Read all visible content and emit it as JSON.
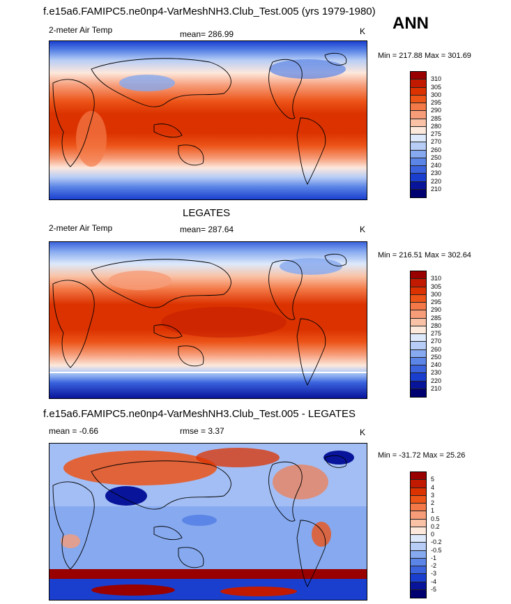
{
  "header": {
    "title": "f.e15a6.FAMIPC5.ne0np4-VarMeshNH3.Club_Test.005 (yrs 1979-1980)",
    "season": "ANN"
  },
  "panels": [
    {
      "id": "model",
      "variable": "2-meter Air Temp",
      "stat": "mean= 286.99",
      "units": "K",
      "minmax": "Min = 217.88 Max = 301.69"
    },
    {
      "id": "obs",
      "title": "LEGATES",
      "variable": "2-meter Air Temp",
      "stat": "mean= 287.64",
      "units": "K",
      "minmax": "Min = 216.51 Max = 302.64"
    },
    {
      "id": "diff",
      "title": "f.e15a6.FAMIPC5.ne0np4-VarMeshNH3.Club_Test.005 - LEGATES",
      "stat_mean": "mean =  -0.66",
      "stat_rmse": "rmse =   3.37",
      "units": "K",
      "minmax": "Min = -31.72 Max =  25.26"
    }
  ],
  "colorbar_abs": {
    "levels": [
      "310",
      "305",
      "300",
      "295",
      "290",
      "285",
      "280",
      "275",
      "270",
      "260",
      "250",
      "240",
      "230",
      "220",
      "210"
    ],
    "colors": [
      "#990000",
      "#c21a00",
      "#db3200",
      "#ec5418",
      "#f37a48",
      "#f69c78",
      "#f9c2a6",
      "#fde8dc",
      "#dde9fb",
      "#b7cdf6",
      "#86a9ef",
      "#5b85e6",
      "#3a63dd",
      "#1a3fcf",
      "#08149a",
      "#000070"
    ]
  },
  "colorbar_diff": {
    "levels": [
      "5",
      "4",
      "3",
      "2",
      "1",
      "0.5",
      "0.2",
      "0",
      "-0.2",
      "-0.5",
      "-1",
      "-2",
      "-3",
      "-4",
      "-5"
    ],
    "colors": [
      "#990000",
      "#c21a00",
      "#db3200",
      "#ec5418",
      "#f37a48",
      "#f69c78",
      "#f9c2a6",
      "#fde8dc",
      "#dde9fb",
      "#b7cdf6",
      "#86a9ef",
      "#5b85e6",
      "#3a63dd",
      "#1a3fcf",
      "#08149a",
      "#000070"
    ]
  }
}
